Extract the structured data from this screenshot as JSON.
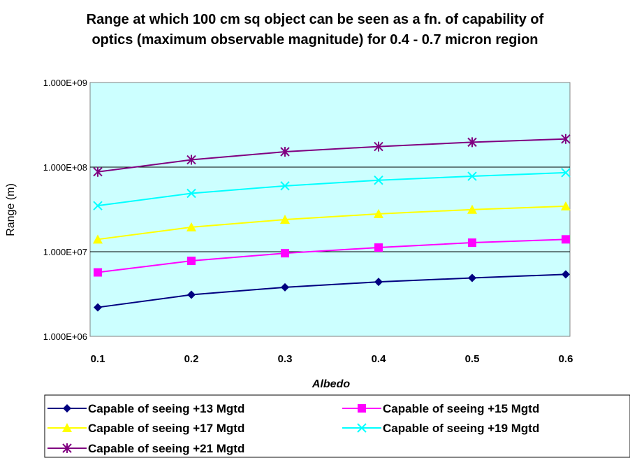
{
  "chart_data": {
    "type": "line",
    "title_lines": [
      "Range at which 100 cm sq object can be seen as a fn. of capability of",
      "optics (maximum observable magnitude) for 0.4 - 0.7 micron region"
    ],
    "xlabel": "Albedo",
    "ylabel": "Range (m)",
    "x": [
      0.1,
      0.2,
      0.3,
      0.4,
      0.5,
      0.6
    ],
    "x_tick_labels": [
      "0.1",
      "0.2",
      "0.3",
      "0.4",
      "0.5",
      "0.6"
    ],
    "y_scale": "log",
    "ylim": [
      1000000,
      1000000000
    ],
    "y_tick_values": [
      1000000,
      10000000,
      100000000,
      1000000000
    ],
    "y_tick_labels": [
      "1.000E+06",
      "1.000E+07",
      "1.000E+08",
      "1.000E+09"
    ],
    "plot_background": "#ccffff",
    "grid": "horizontal major",
    "legend_position": "bottom",
    "series": [
      {
        "name": "Capable of seeing +13 Mgtd",
        "color": "#000080",
        "marker": "diamond",
        "values": [
          2200000,
          3100000,
          3800000,
          4400000,
          4900000,
          5400000
        ]
      },
      {
        "name": "Capable of seeing +15 Mgtd",
        "color": "#ff00ff",
        "marker": "square",
        "values": [
          5700000,
          7800000,
          9600000,
          11200000,
          12800000,
          14000000
        ]
      },
      {
        "name": "Capable of seeing +17 Mgtd",
        "color": "#ffff00",
        "marker": "triangle",
        "values": [
          14000000,
          19500000,
          24000000,
          28000000,
          31500000,
          34500000
        ]
      },
      {
        "name": "Capable of seeing +19 Mgtd",
        "color": "#00ffff",
        "marker": "x",
        "values": [
          35000000,
          49000000,
          60000000,
          70000000,
          78000000,
          86000000
        ]
      },
      {
        "name": "Capable of seeing +21 Mgtd",
        "color": "#800080",
        "marker": "asterisk",
        "values": [
          88000000,
          122000000,
          152000000,
          175000000,
          197000000,
          215000000
        ]
      }
    ]
  }
}
